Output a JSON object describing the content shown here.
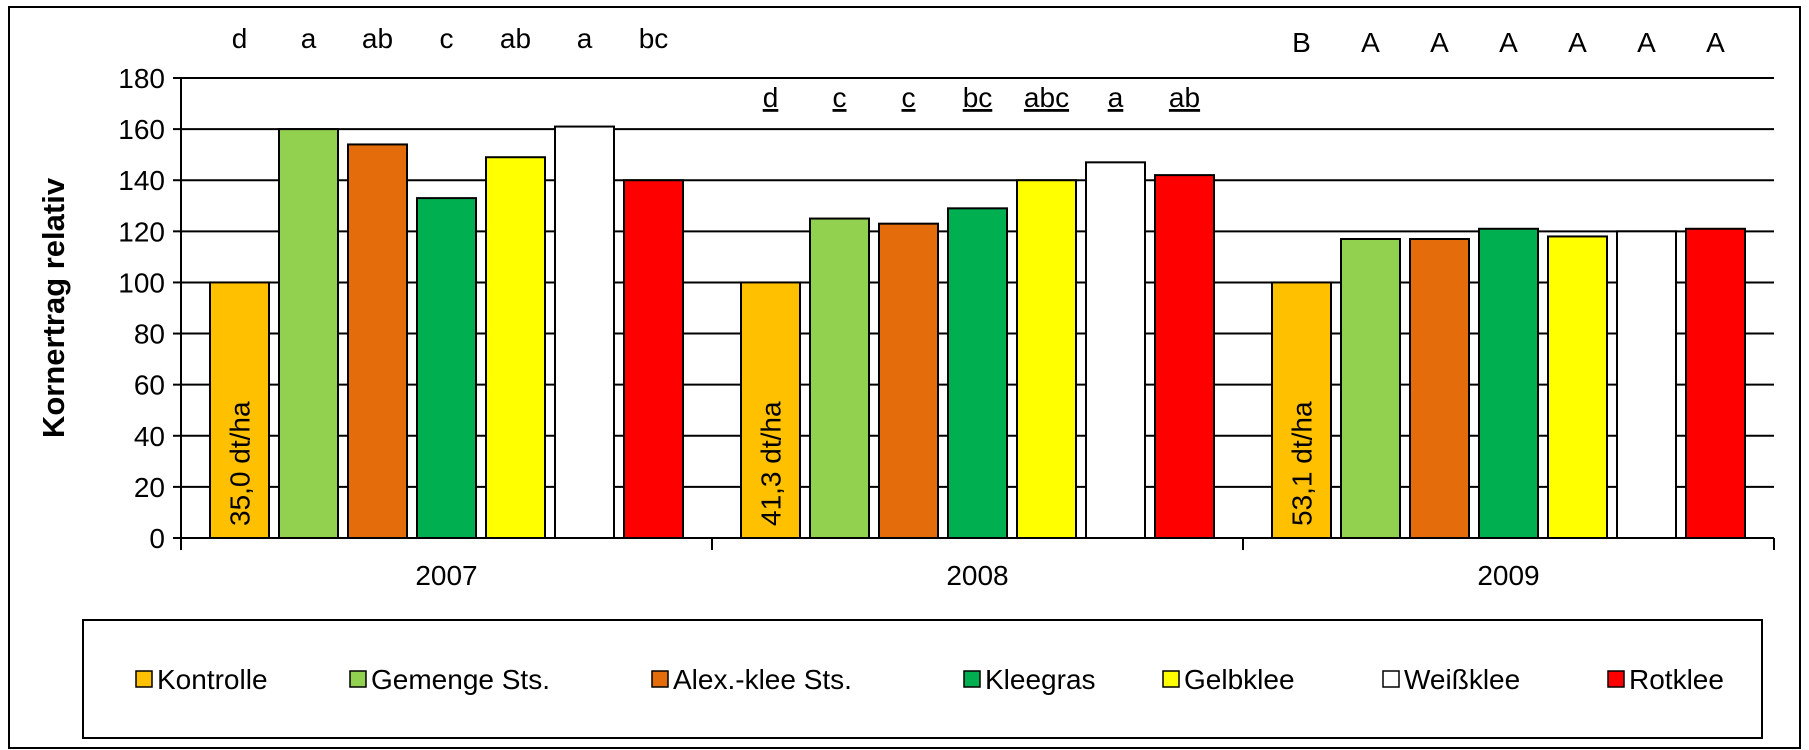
{
  "chart_data": {
    "type": "bar",
    "ylabel": "Kornertrag relativ",
    "categories": [
      "2007",
      "2008",
      "2009"
    ],
    "series": [
      {
        "name": "Kontrolle",
        "color": "#ffc000",
        "values": [
          100,
          100,
          100
        ]
      },
      {
        "name": "Gemenge Sts.",
        "color": "#92d050",
        "values": [
          160,
          125,
          117
        ]
      },
      {
        "name": "Alex.-klee Sts.",
        "color": "#e46c0a",
        "values": [
          154,
          123,
          117
        ]
      },
      {
        "name": "Kleegras",
        "color": "#00b050",
        "values": [
          133,
          129,
          121
        ]
      },
      {
        "name": "Gelbklee",
        "color": "#ffff00",
        "values": [
          149,
          140,
          118
        ]
      },
      {
        "name": "Weißklee",
        "color": "#ffffff",
        "values": [
          161,
          147,
          120
        ]
      },
      {
        "name": "Rotklee",
        "color": "#ff0000",
        "values": [
          140,
          142,
          121
        ]
      }
    ],
    "bar_texts": [
      "35,0 dt/ha",
      "41,3 dt/ha",
      "53,1 dt/ha"
    ],
    "letters": [
      [
        "d",
        "a",
        "ab",
        "c",
        "ab",
        "a",
        "bc"
      ],
      [
        "d",
        "c",
        "c",
        "bc",
        "abc",
        "a",
        "ab"
      ],
      [
        "B",
        "A",
        "A",
        "A",
        "A",
        "A",
        "A"
      ]
    ],
    "letters_underlined": [
      false,
      true,
      false
    ],
    "ylim": [
      0,
      180
    ],
    "yticks": [
      0,
      20,
      40,
      60,
      80,
      100,
      120,
      140,
      160,
      180
    ],
    "grid": true,
    "legend": "bottom"
  }
}
